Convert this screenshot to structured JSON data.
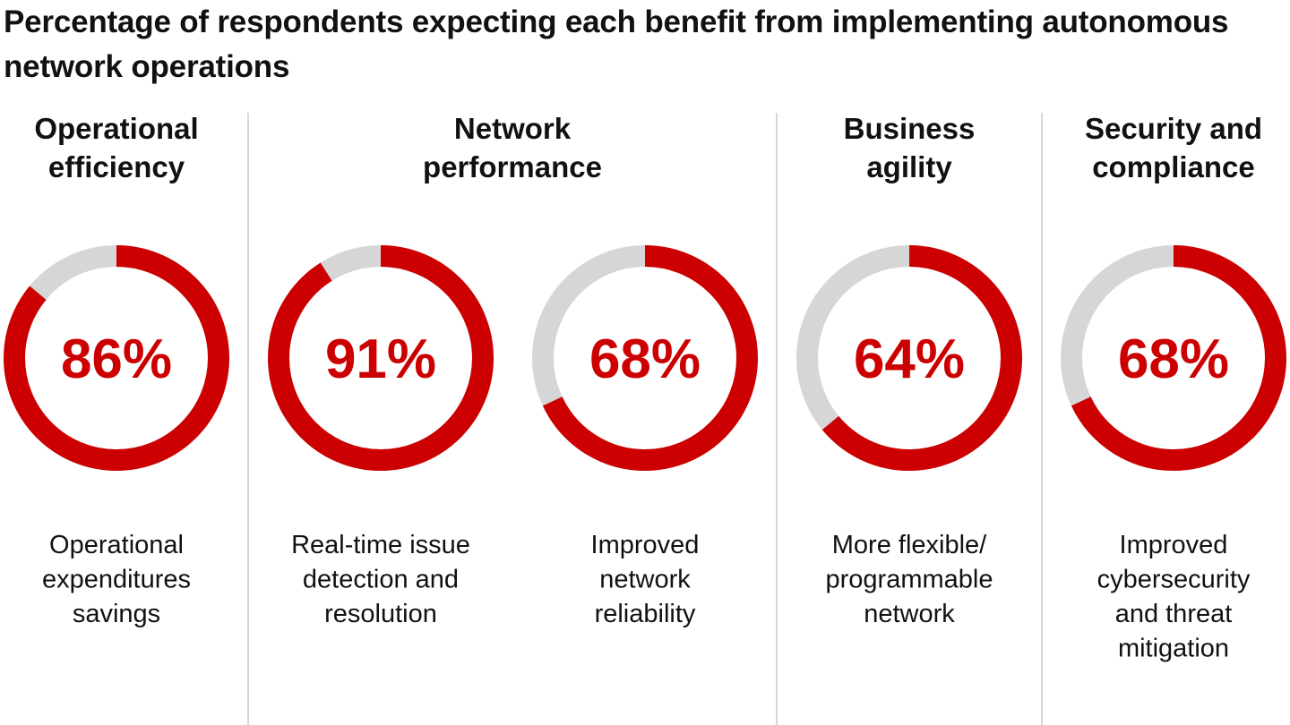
{
  "title": "Percentage of respondents expecting each benefit from implementing autonomous network operations",
  "colors": {
    "accent": "#cc0000",
    "track": "#d6d6d6"
  },
  "chart_data": {
    "type": "donut",
    "title": "Percentage of respondents expecting each benefit from implementing autonomous network operations",
    "unit": "%",
    "groups": [
      {
        "category": [
          "Operational",
          "efficiency"
        ],
        "items": [
          0
        ]
      },
      {
        "category": [
          "Network",
          "performance"
        ],
        "items": [
          1,
          2
        ]
      },
      {
        "category": [
          "Business",
          "agility"
        ],
        "items": [
          3
        ]
      },
      {
        "category": [
          "Security and",
          "compliance"
        ],
        "items": [
          4
        ]
      }
    ],
    "series": [
      {
        "label": "86%",
        "value": 86,
        "description": [
          "Operational",
          "expenditures",
          "savings"
        ]
      },
      {
        "label": "91%",
        "value": 91,
        "description": [
          "Real-time issue",
          "detection and",
          "resolution"
        ]
      },
      {
        "label": "68%",
        "value": 68,
        "description": [
          "Improved",
          "network",
          "reliability"
        ]
      },
      {
        "label": "64%",
        "value": 64,
        "description": [
          "More flexible/",
          "programmable",
          "network"
        ]
      },
      {
        "label": "68%",
        "value": 68,
        "description": [
          "Improved",
          "cybersecurity",
          "and threat",
          "mitigation"
        ]
      }
    ]
  }
}
